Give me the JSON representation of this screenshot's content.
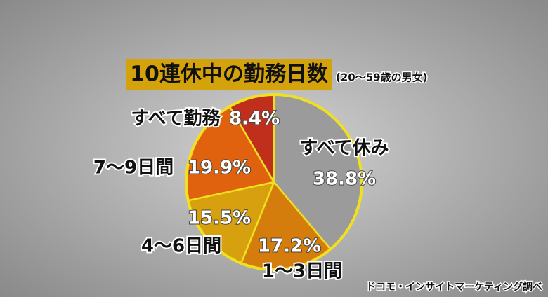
{
  "chart_data": {
    "type": "pie",
    "title": "10連休中の勤務日数",
    "subtitle": "(20～59歳の男女)",
    "categories": [
      "すべて休み",
      "1～3日間",
      "4～6日間",
      "7～9日間",
      "すべて勤務"
    ],
    "values": [
      38.8,
      17.2,
      15.5,
      19.9,
      8.4
    ],
    "value_labels": [
      "38.8%",
      "17.2%",
      "15.5%",
      "19.9%",
      "8.4%"
    ],
    "colors": [
      "#9b9b9b",
      "#d47d0c",
      "#d6a00e",
      "#e0620f",
      "#bf2f1c"
    ],
    "source": "ドコモ・インサイトマーケティング調べ"
  }
}
